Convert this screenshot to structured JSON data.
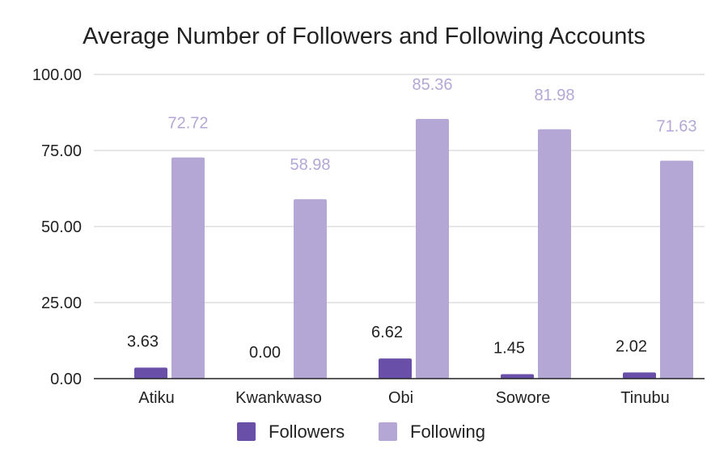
{
  "chart_data": {
    "type": "bar",
    "title": "Average Number of Followers and Following Accounts",
    "xlabel": "",
    "ylabel": "",
    "ylim": [
      0,
      100
    ],
    "yticks": [
      "0.00",
      "25.00",
      "50.00",
      "75.00",
      "100.00"
    ],
    "ytick_values": [
      0,
      25,
      50,
      75,
      100
    ],
    "categories": [
      "Atiku",
      "Kwankwaso",
      "Obi",
      "Sowore",
      "Tinubu"
    ],
    "series": [
      {
        "name": "Followers",
        "color": "#6a4fa8",
        "label_color": "#222222",
        "values": [
          3.63,
          0.0,
          6.62,
          1.45,
          2.02
        ],
        "labels": [
          "3.63",
          "0.00",
          "6.62",
          "1.45",
          "2.02"
        ]
      },
      {
        "name": "Following",
        "color": "#b4a7d6",
        "label_color": "#b4a7d6",
        "values": [
          72.72,
          58.98,
          85.36,
          81.98,
          71.63
        ],
        "labels": [
          "72.72",
          "58.98",
          "85.36",
          "81.98",
          "71.63"
        ]
      }
    ],
    "grid": true,
    "legend_position": "bottom"
  }
}
